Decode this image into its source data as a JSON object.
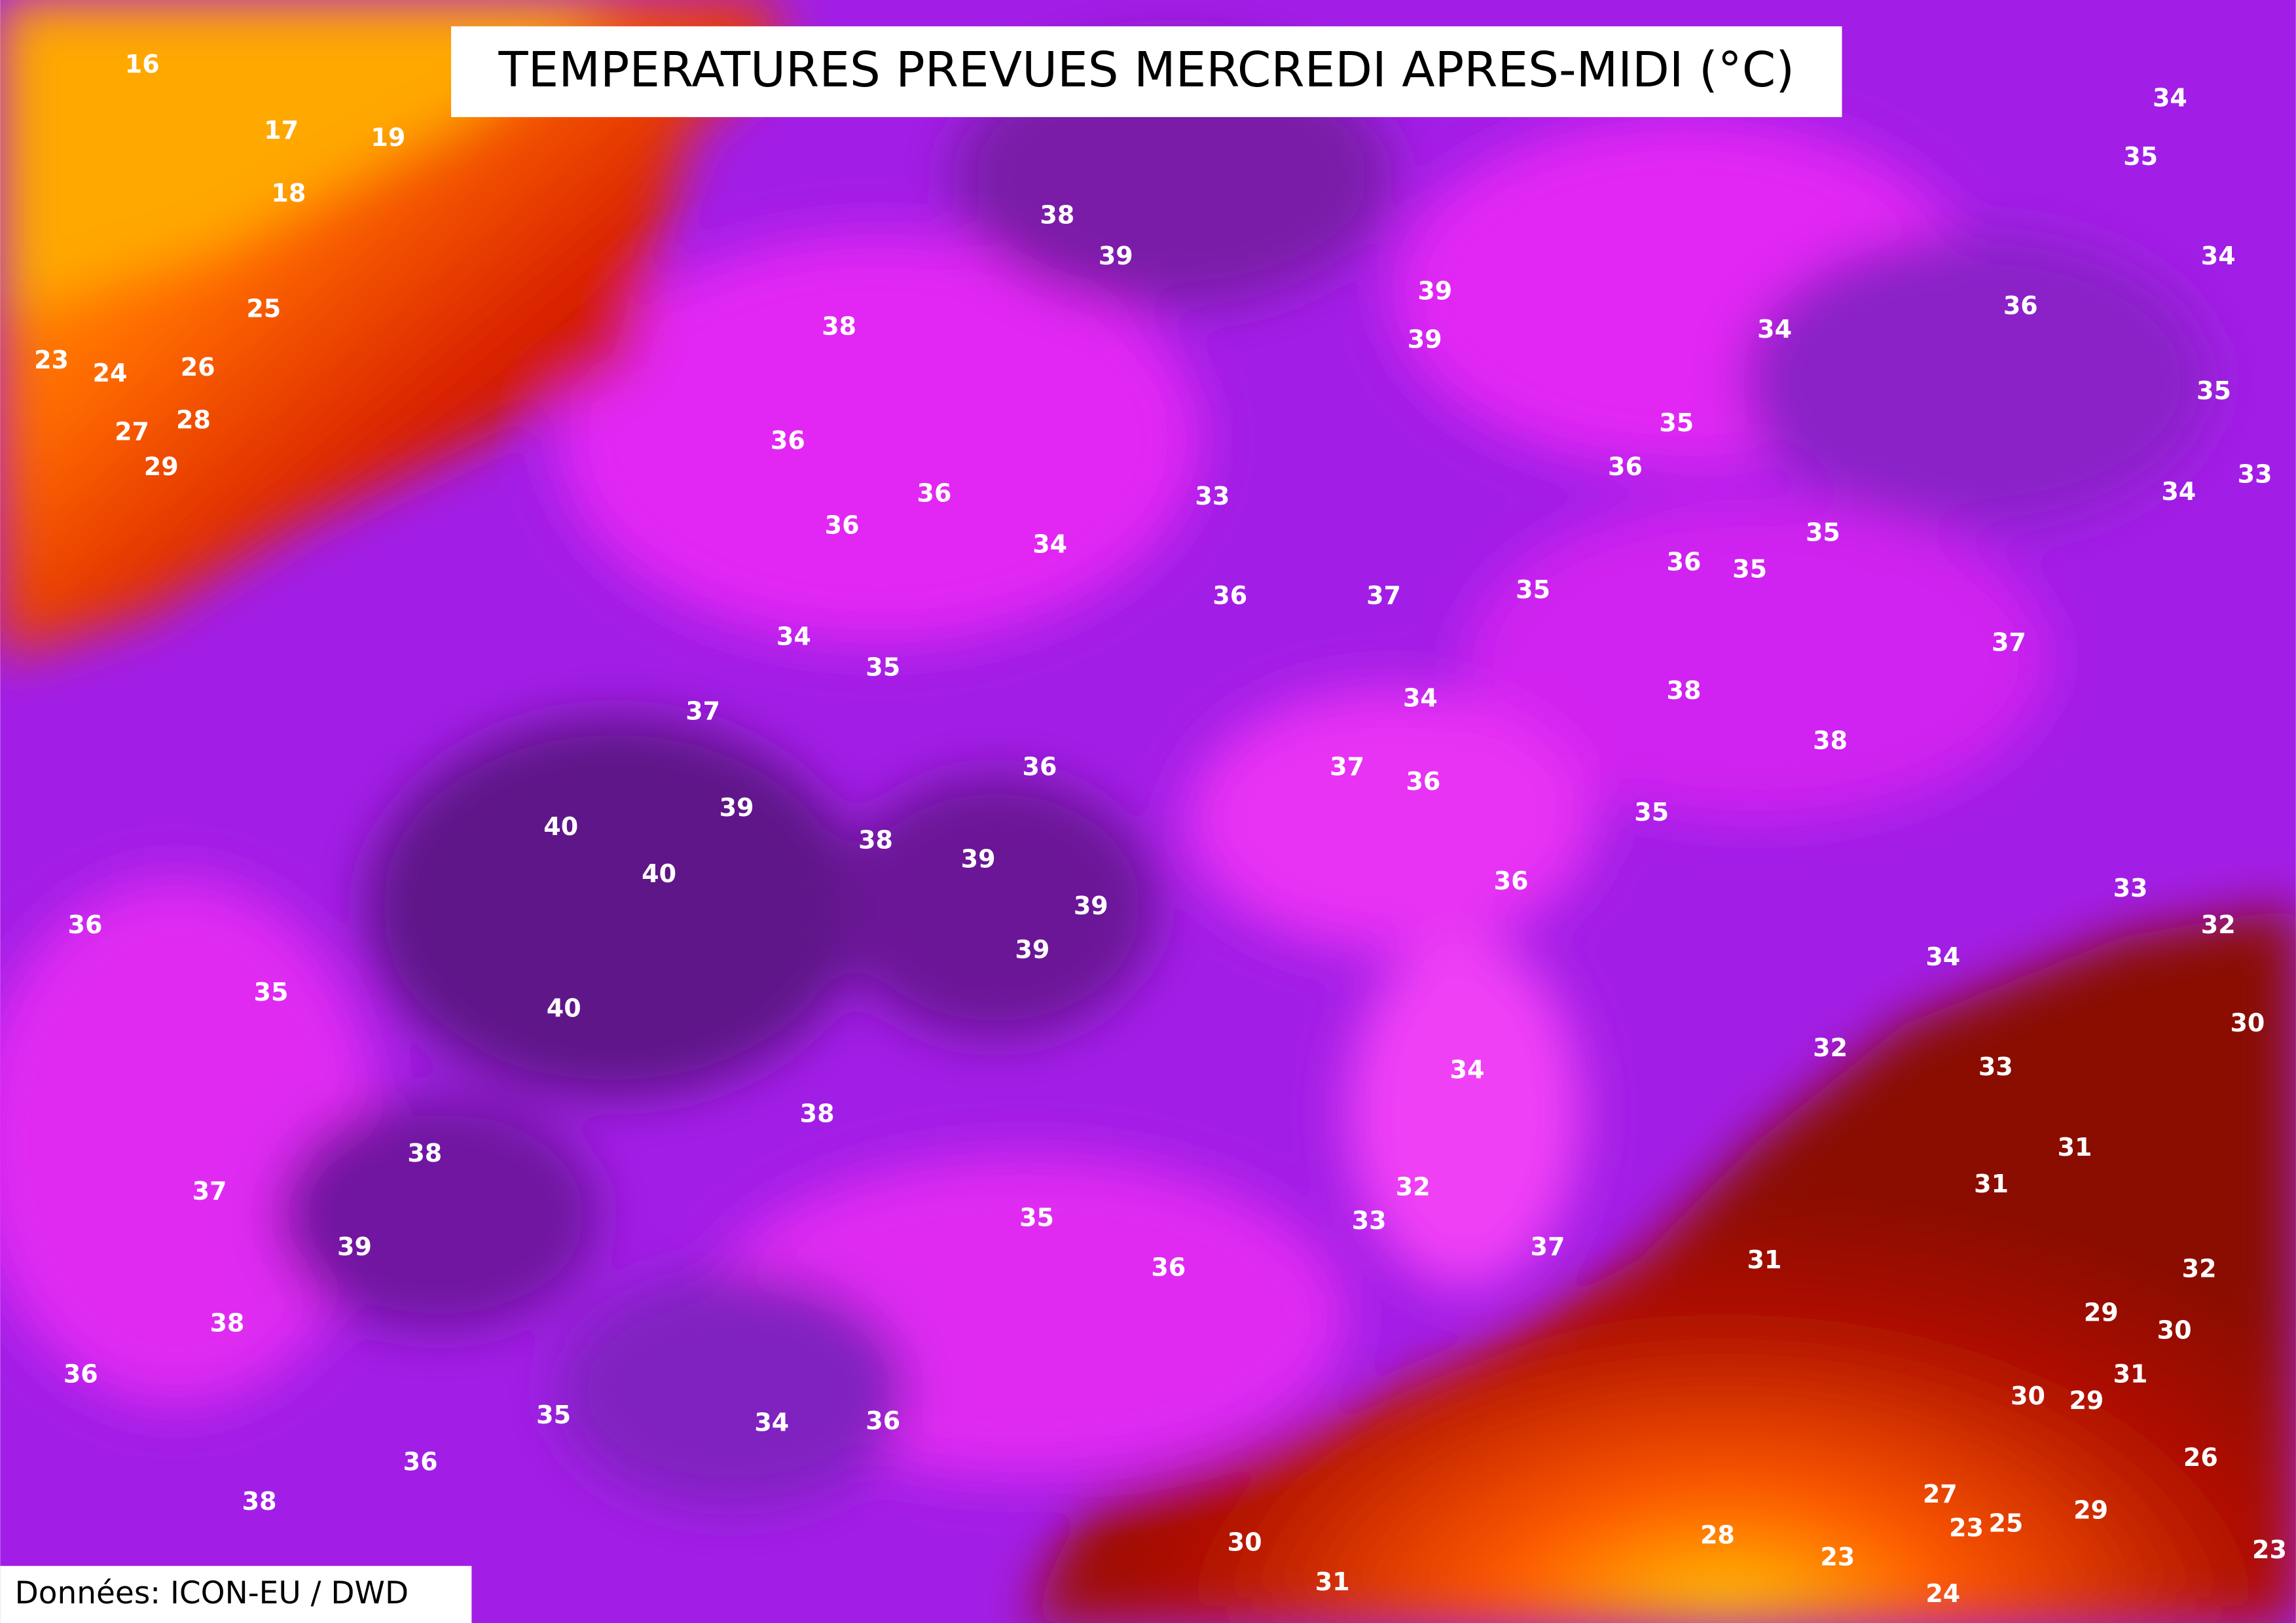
{
  "title": "TEMPERATURES PREVUES MERCREDI APRES-MIDI (°C)",
  "source": "Données: ICON-EU / DWD",
  "contour_labels": [
    16,
    17,
    19,
    18,
    25,
    23,
    24,
    26,
    27,
    28,
    29,
    38,
    39,
    38,
    39,
    39,
    36,
    36,
    36,
    33,
    34,
    34,
    35,
    34,
    36,
    34,
    35,
    35,
    36,
    34,
    33,
    35,
    36,
    35,
    37,
    35,
    36,
    34,
    35,
    37,
    38,
    34,
    38,
    37,
    36,
    37,
    36,
    39,
    40,
    35,
    38,
    39,
    40,
    39,
    36,
    33,
    39,
    36,
    32,
    34,
    35,
    40,
    30,
    32,
    34,
    33,
    38,
    31,
    38,
    31,
    37,
    32,
    33,
    35,
    39,
    37,
    36,
    31,
    32,
    38,
    29,
    30,
    36,
    31,
    30,
    29,
    35,
    34,
    36,
    26,
    36,
    38,
    29,
    27,
    23,
    25,
    28,
    30,
    23,
    31,
    24,
    23
  ]
}
